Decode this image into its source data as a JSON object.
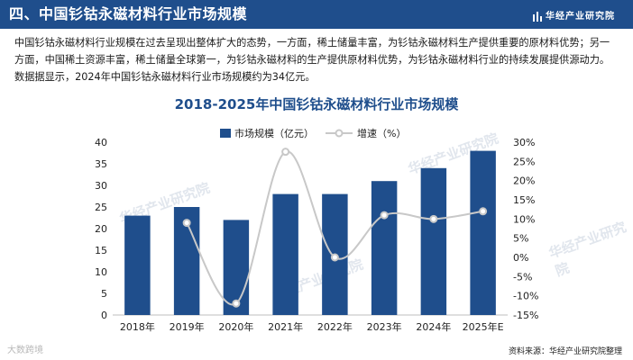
{
  "header": {
    "title": "四、中国钐钴永磁材料行业市场规模",
    "brand": "华经产业研究院"
  },
  "intro": "中国钐钴永磁材料行业规模在过去呈现出整体扩大的态势，一方面，稀土储量丰富，为钐钴永磁材料生产提供重要的原材料优势；另一方面，中国稀土资源丰富，稀土储量全球第一，为钐钴永磁材料的生产提供原材料优势，为钐钴永磁材料行业的持续发展提供源动力。数据据显示，2024年中国钐钴永磁材料行业市场规模约为34亿元。",
  "chart_data": {
    "type": "bar",
    "title": "2018-2025年中国钐钴永磁材料行业市场规模",
    "categories": [
      "2018年",
      "2019年",
      "2020年",
      "2021年",
      "2022年",
      "2023年",
      "2024年",
      "2025年E"
    ],
    "series": [
      {
        "name": "市场规模（亿元）",
        "type": "bar",
        "axis": "left",
        "values": [
          23,
          25,
          22,
          28,
          28,
          31,
          34,
          38
        ]
      },
      {
        "name": "增速（%）",
        "type": "line",
        "axis": "right",
        "values": [
          null,
          9,
          -12,
          27.5,
          0,
          11,
          10,
          12
        ]
      }
    ],
    "ylim_left": [
      0,
      40
    ],
    "yticks_left": [
      "0",
      "5",
      "10",
      "15",
      "20",
      "25",
      "30",
      "35",
      "40"
    ],
    "ylim_right": [
      -15,
      30
    ],
    "yticks_right": [
      "-15%",
      "-10%",
      "-5%",
      "0%",
      "5%",
      "10%",
      "15%",
      "20%",
      "25%",
      "30%"
    ],
    "legend_position": "top",
    "colors": {
      "bar": "#1f4e8c",
      "line": "#c8c8c8"
    }
  },
  "watermark": "华经产业研究院",
  "bottom_logo": "大数跨境",
  "source": "资料来源：华经产业研究院整理"
}
